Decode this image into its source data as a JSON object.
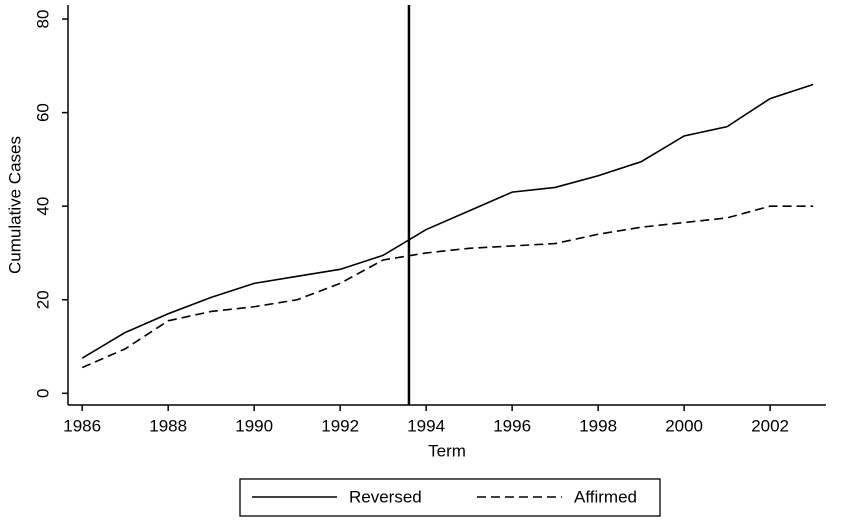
{
  "chart_data": {
    "type": "line",
    "x_label": "Term",
    "y_label": "Cumulative Cases",
    "x": [
      1986,
      1987,
      1988,
      1989,
      1990,
      1991,
      1992,
      1993,
      1994,
      1995,
      1996,
      1997,
      1998,
      1999,
      2000,
      2001,
      2002,
      2003
    ],
    "series": [
      {
        "name": "Reversed",
        "color": "#000000",
        "style": "solid",
        "values": [
          7.5,
          13,
          17,
          20.5,
          23.5,
          25,
          26.5,
          29.5,
          35,
          39,
          43,
          44,
          46.5,
          49.5,
          55,
          57,
          63,
          66
        ]
      },
      {
        "name": "Affirmed",
        "color": "#000000",
        "style": "dashed",
        "values": [
          5.5,
          9.5,
          15.5,
          17.5,
          18.5,
          20,
          23.5,
          28.5,
          30,
          31,
          31.5,
          32,
          34,
          35.5,
          36.5,
          37.5,
          40,
          40
        ]
      }
    ],
    "vline": 1993.6,
    "xlim": [
      1985.67,
      2003.3
    ],
    "xticks": [
      1986,
      1988,
      1990,
      1992,
      1994,
      1996,
      1998,
      2000,
      2002
    ],
    "ylim": [
      -2.5,
      83
    ],
    "yticks": [
      0,
      20,
      40,
      60,
      80
    ],
    "legend": "bottom"
  }
}
